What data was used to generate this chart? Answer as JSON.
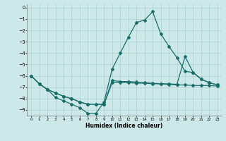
{
  "xlabel": "Humidex (Indice chaleur)",
  "background_color": "#cce8e8",
  "grid_color": "#aacfcf",
  "line_color": "#1a6e6a",
  "xlim": [
    -0.5,
    23.5
  ],
  "ylim": [
    -9.5,
    0.3
  ],
  "yticks": [
    0,
    -1,
    -2,
    -3,
    -4,
    -5,
    -6,
    -7,
    -8,
    -9
  ],
  "xticks": [
    0,
    1,
    2,
    3,
    4,
    5,
    6,
    7,
    8,
    9,
    10,
    11,
    12,
    13,
    14,
    15,
    16,
    17,
    18,
    19,
    20,
    21,
    22,
    23
  ],
  "line1_x": [
    0,
    1,
    2,
    3,
    4,
    5,
    6,
    7,
    8,
    9,
    10,
    11,
    12,
    13,
    14,
    15,
    16,
    17,
    18,
    19,
    20,
    21,
    22,
    23
  ],
  "line1_y": [
    -6.0,
    -6.7,
    -7.2,
    -7.9,
    -8.2,
    -8.5,
    -8.8,
    -9.3,
    -9.3,
    -8.3,
    -5.4,
    -4.0,
    -2.6,
    -1.3,
    -1.1,
    -0.35,
    -2.3,
    -3.4,
    -4.4,
    -5.6,
    -5.7,
    -6.3,
    -6.6,
    -6.8
  ],
  "line2_x": [
    0,
    1,
    2,
    3,
    4,
    5,
    6,
    7,
    8,
    9,
    10,
    11,
    12,
    13,
    14,
    15,
    16,
    17,
    18,
    19,
    20,
    21,
    22,
    23
  ],
  "line2_y": [
    -6.0,
    -6.7,
    -7.2,
    -7.5,
    -7.8,
    -8.0,
    -8.3,
    -8.5,
    -8.5,
    -8.5,
    -6.4,
    -6.5,
    -6.5,
    -6.55,
    -6.6,
    -6.65,
    -6.7,
    -6.7,
    -6.75,
    -4.3,
    -5.7,
    -6.3,
    -6.6,
    -6.8
  ],
  "line3_x": [
    0,
    1,
    2,
    3,
    4,
    5,
    6,
    7,
    8,
    9,
    10,
    11,
    12,
    13,
    14,
    15,
    16,
    17,
    18,
    19,
    20,
    21,
    22,
    23
  ],
  "line3_y": [
    -6.0,
    -6.7,
    -7.2,
    -7.5,
    -7.8,
    -8.0,
    -8.3,
    -8.5,
    -8.5,
    -8.5,
    -6.6,
    -6.6,
    -6.6,
    -6.65,
    -6.65,
    -6.7,
    -6.7,
    -6.75,
    -6.8,
    -6.8,
    -6.85,
    -6.85,
    -6.85,
    -6.9
  ]
}
